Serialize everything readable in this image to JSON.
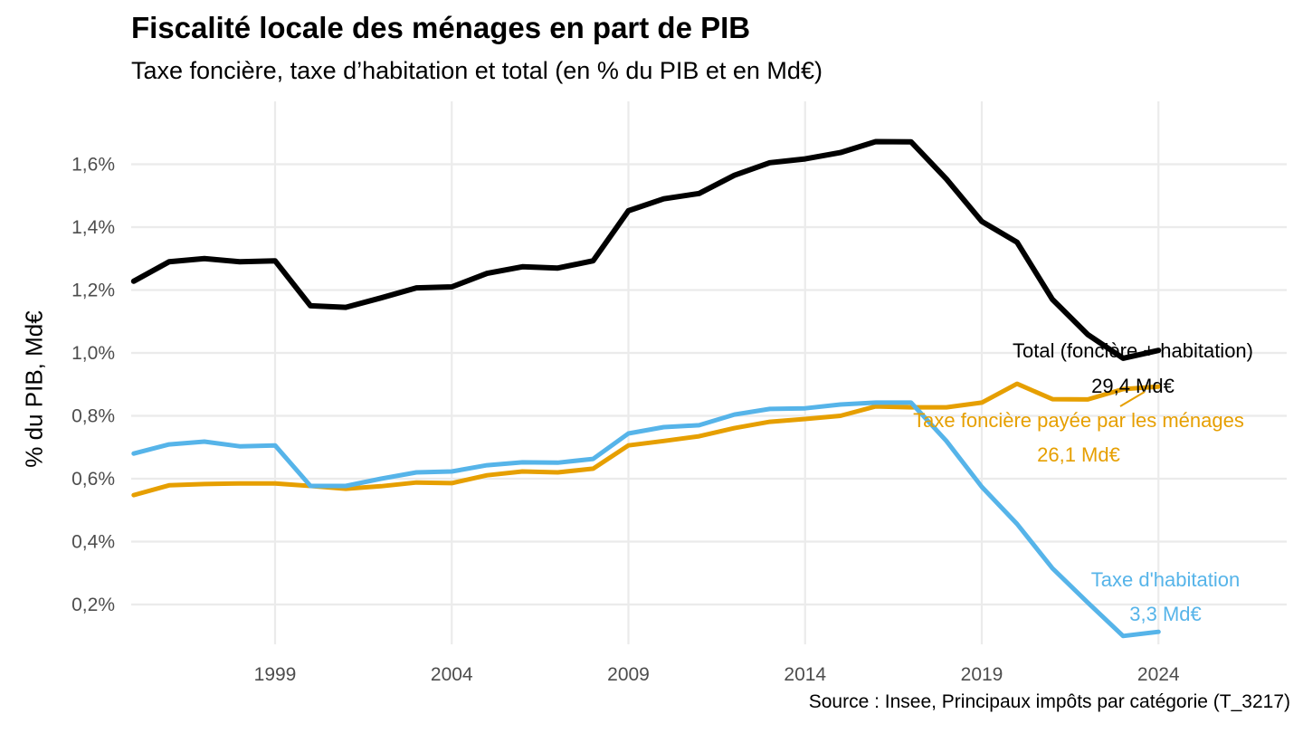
{
  "chart_data": {
    "type": "line",
    "title": "Fiscalité locale des ménages en part de PIB",
    "subtitle": "Taxe foncière, taxe d’habitation et total (en % du PIB et en Md€)",
    "xlabel": "",
    "ylabel": "% du PIB, Md€",
    "caption": "Source : Insee, Principaux impôts par catégorie (T_3217)",
    "x": [
      1995,
      1996,
      1997,
      1998,
      1999,
      2000,
      2001,
      2002,
      2003,
      2004,
      2005,
      2006,
      2007,
      2008,
      2009,
      2010,
      2011,
      2012,
      2013,
      2014,
      2015,
      2016,
      2017,
      2018,
      2019,
      2020,
      2021,
      2022,
      2023,
      2024
    ],
    "xlim": [
      1995,
      2028
    ],
    "ylim": [
      0.1,
      1.7
    ],
    "x_ticks": [
      1999,
      2004,
      2009,
      2014,
      2019,
      2024
    ],
    "x_tick_labels": [
      "1999",
      "2004",
      "2009",
      "2014",
      "2019",
      "2024"
    ],
    "y_ticks": [
      0.2,
      0.4,
      0.6,
      0.8,
      1.0,
      1.2,
      1.4,
      1.6
    ],
    "y_tick_labels": [
      "0,2%",
      "0,4%",
      "0,6%",
      "0,8%",
      "1,0%",
      "1,2%",
      "1,4%",
      "1,6%"
    ],
    "grid": true,
    "legend": "none (direct labels)",
    "series": [
      {
        "name": "Total (foncière + habitation)",
        "color": "#000000",
        "values": [
          1.228,
          1.29,
          1.3,
          1.29,
          1.293,
          1.15,
          1.145,
          1.175,
          1.207,
          1.21,
          1.253,
          1.274,
          1.27,
          1.293,
          1.452,
          1.49,
          1.507,
          1.565,
          1.605,
          1.617,
          1.637,
          1.672,
          1.671,
          1.553,
          1.418,
          1.352,
          1.17,
          1.058,
          0.983,
          1.008
        ],
        "label": "Total (foncière + habitation)",
        "end_value_label": "29,4 Md€"
      },
      {
        "name": "Taxe foncière payée par les ménages",
        "color": "#E69F00",
        "values": [
          0.548,
          0.579,
          0.583,
          0.585,
          0.585,
          0.577,
          0.568,
          0.576,
          0.588,
          0.586,
          0.611,
          0.623,
          0.62,
          0.632,
          0.706,
          0.72,
          0.735,
          0.761,
          0.781,
          0.79,
          0.8,
          0.83,
          0.827,
          0.827,
          0.842,
          0.902,
          0.853,
          0.852,
          0.885,
          0.893
        ],
        "label": "Taxe foncière payée par les ménages",
        "end_value_label": "26,1 Md€"
      },
      {
        "name": "Taxe d'habitation",
        "color": "#56B4E9",
        "values": [
          0.68,
          0.709,
          0.718,
          0.703,
          0.706,
          0.577,
          0.577,
          0.6,
          0.62,
          0.623,
          0.643,
          0.652,
          0.651,
          0.663,
          0.744,
          0.764,
          0.77,
          0.804,
          0.822,
          0.824,
          0.836,
          0.842,
          0.842,
          0.72,
          0.574,
          0.456,
          0.315,
          0.206,
          0.1,
          0.113
        ],
        "label": "Taxe d'habitation",
        "end_value_label": "3,3 Md€"
      }
    ]
  }
}
